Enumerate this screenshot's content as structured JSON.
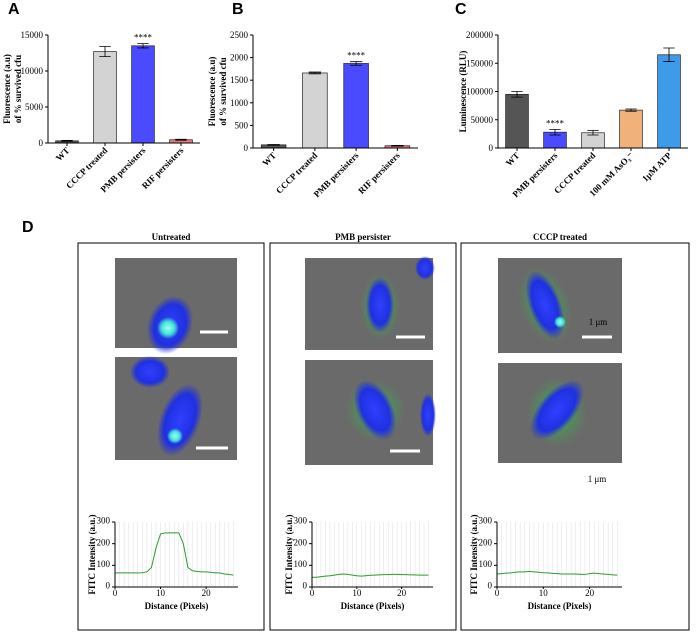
{
  "chart_data": [
    {
      "type": "bar",
      "panel_label": "A",
      "ylabel": [
        "Fluorescence (a.u)",
        "of % survived cfu"
      ],
      "categories": [
        "WT",
        "CCCP treated",
        "PMB persisters",
        "RIF persisters"
      ],
      "values": [
        300,
        12700,
        13500,
        450
      ],
      "errors": [
        60,
        700,
        300,
        60
      ],
      "colors": [
        "#555555",
        "#d3d3d3",
        "#4a4aff",
        "#e87b7b"
      ],
      "significance": [
        null,
        null,
        "****",
        null
      ],
      "ylim": [
        0,
        15000
      ],
      "yticks": [
        0,
        5000,
        10000,
        15000
      ]
    },
    {
      "type": "bar",
      "panel_label": "B",
      "ylabel": [
        "Fluorescence (a.u)",
        "of % survived cfu"
      ],
      "categories": [
        "WT",
        "CCCP treated",
        "PMB persisters",
        "RIF persisters"
      ],
      "values": [
        70,
        1660,
        1870,
        50
      ],
      "errors": [
        8,
        20,
        40,
        8
      ],
      "colors": [
        "#555555",
        "#d3d3d3",
        "#4a4aff",
        "#e87b7b"
      ],
      "significance": [
        null,
        null,
        "****",
        null
      ],
      "ylim": [
        0,
        2500
      ],
      "yticks": [
        0,
        500,
        1000,
        1500,
        2000,
        2500
      ]
    },
    {
      "type": "bar",
      "panel_label": "C",
      "ylabel": [
        "Luminescence (RLU)"
      ],
      "categories": [
        "WT",
        "PMB persisters",
        "CCCP treated",
        "100 mM AsO₃⁻",
        "1μM ATP"
      ],
      "values": [
        95000,
        28000,
        27000,
        67000,
        165000
      ],
      "errors": [
        5000,
        5000,
        4000,
        2000,
        12000
      ],
      "colors": [
        "#555555",
        "#4a4aff",
        "#d3d3d3",
        "#f0b27a",
        "#3d9be9"
      ],
      "significance": [
        null,
        "****",
        null,
        null,
        null
      ],
      "ylim": [
        0,
        200000
      ],
      "yticks": [
        0,
        50000,
        100000,
        150000,
        200000
      ]
    },
    {
      "type": "line",
      "panel_label": "D",
      "title": "Untreated",
      "xlabel": "Distance (Pixels)",
      "ylabel": [
        "FITC Intensity (a.u.)"
      ],
      "x": [
        0,
        1,
        2,
        3,
        4,
        5,
        6,
        7,
        8,
        9,
        10,
        11,
        12,
        13,
        14,
        15,
        16,
        17,
        18,
        19,
        20,
        21,
        22,
        23,
        24,
        25,
        26
      ],
      "values": [
        65,
        65,
        65,
        65,
        65,
        65,
        66,
        70,
        90,
        180,
        245,
        250,
        250,
        250,
        250,
        200,
        90,
        75,
        72,
        70,
        70,
        68,
        65,
        65,
        60,
        58,
        55
      ],
      "color": "#2e9b2e",
      "xlim": [
        0,
        27
      ],
      "xticks": [
        0,
        10,
        20
      ],
      "ylim": [
        0,
        300
      ],
      "yticks": [
        0,
        100,
        200,
        300
      ]
    },
    {
      "type": "line",
      "title": "PMB persister",
      "xlabel": "Distance (Pixels)",
      "ylabel": [
        "FITC Intensity (a.u.)"
      ],
      "x": [
        0,
        1,
        2,
        3,
        4,
        5,
        6,
        7,
        8,
        9,
        10,
        11,
        12,
        13,
        14,
        15,
        16,
        17,
        18,
        19,
        20,
        21,
        22,
        23,
        24,
        25,
        26
      ],
      "values": [
        45,
        45,
        48,
        50,
        52,
        55,
        58,
        60,
        58,
        55,
        52,
        50,
        52,
        54,
        55,
        56,
        57,
        57,
        58,
        58,
        57,
        57,
        56,
        56,
        55,
        55,
        55
      ],
      "color": "#2e9b2e",
      "xlim": [
        0,
        27
      ],
      "xticks": [
        0,
        10,
        20
      ],
      "ylim": [
        0,
        300
      ],
      "yticks": [
        0,
        100,
        200,
        300
      ]
    },
    {
      "type": "line",
      "title": "CCCP treated",
      "xlabel": "Distance (Pixels)",
      "ylabel": [
        "FITC Intensity (a.u.)"
      ],
      "scale_labels": [
        "1 μm",
        "1 μm"
      ],
      "x": [
        0,
        1,
        2,
        3,
        4,
        5,
        6,
        7,
        8,
        9,
        10,
        11,
        12,
        13,
        14,
        15,
        16,
        17,
        18,
        19,
        20,
        21,
        22,
        23,
        24,
        25,
        26
      ],
      "values": [
        60,
        62,
        64,
        65,
        68,
        70,
        70,
        72,
        70,
        68,
        66,
        65,
        63,
        62,
        60,
        60,
        60,
        60,
        58,
        58,
        62,
        64,
        62,
        60,
        58,
        56,
        55
      ],
      "color": "#2e9b2e",
      "xlim": [
        0,
        27
      ],
      "xticks": [
        0,
        10,
        20
      ],
      "ylim": [
        0,
        300
      ],
      "yticks": [
        0,
        100,
        200,
        300
      ]
    }
  ]
}
